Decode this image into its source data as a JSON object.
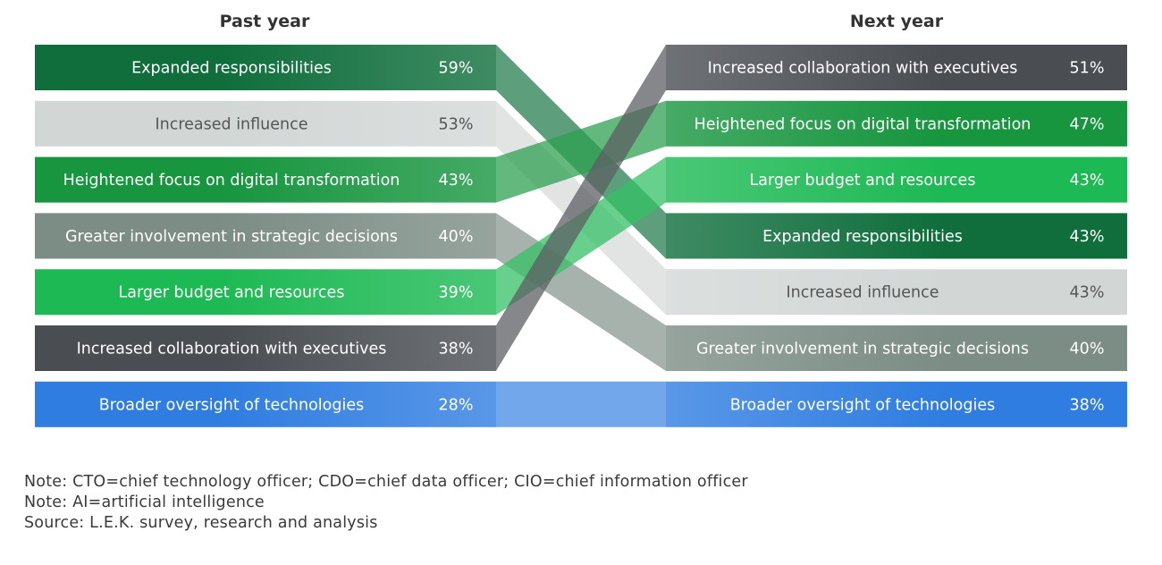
{
  "chart_data": {
    "type": "slope",
    "columns": [
      "Past year",
      "Next year"
    ],
    "series": [
      {
        "name": "Expanded responsibilities",
        "past": 59,
        "next": 43,
        "color": "#0f6e3c"
      },
      {
        "name": "Increased influence",
        "past": 53,
        "next": 43,
        "color": "#d2d7d6"
      },
      {
        "name": "Heightened focus on digital transformation",
        "past": 43,
        "next": 47,
        "color": "#17953f"
      },
      {
        "name": "Greater involvement in strategic decisions",
        "past": 40,
        "next": 40,
        "color": "#7c8d85"
      },
      {
        "name": "Larger budget and resources",
        "past": 39,
        "next": 43,
        "color": "#1db954"
      },
      {
        "name": "Increased collaboration with executives",
        "past": 38,
        "next": 51,
        "color": "#4a4d52"
      },
      {
        "name": "Broader oversight of technologies",
        "past": 28,
        "next": 38,
        "color": "#2f7de1"
      }
    ],
    "past_order": [
      0,
      1,
      2,
      3,
      4,
      5,
      6
    ],
    "next_order": [
      5,
      2,
      4,
      0,
      1,
      3,
      6
    ],
    "value_suffix": "%"
  },
  "notes": [
    "Note: CTO=chief technology officer; CDO=chief data officer; CIO=chief information officer",
    "Note: AI=artificial intelligence",
    "Source: L.E.K. survey, research and analysis"
  ]
}
